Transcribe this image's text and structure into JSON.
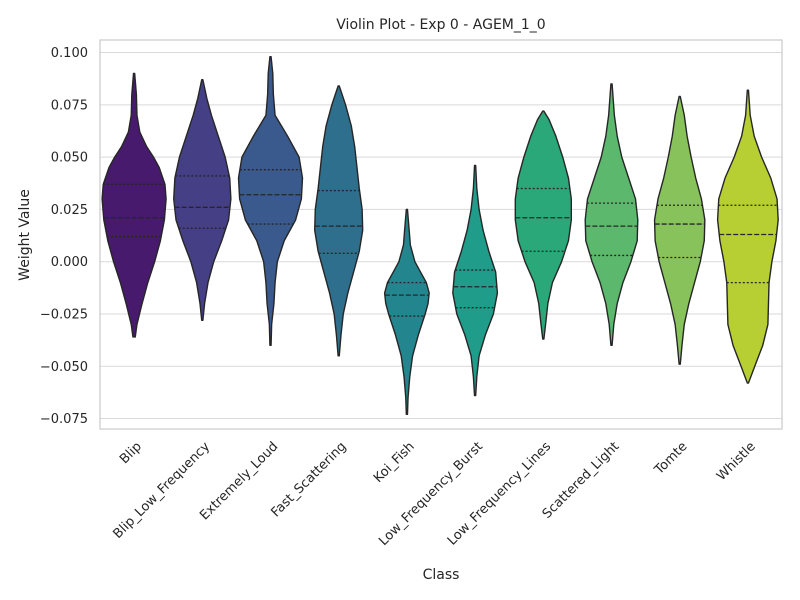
{
  "chart_data": {
    "type": "violin",
    "title": "Violin Plot - Exp 0 - AGEM_1_0",
    "xlabel": "Class",
    "ylabel": "Weight Value",
    "ylim": [
      -0.08,
      0.106
    ],
    "yticks": [
      0.1,
      0.075,
      0.05,
      0.025,
      0.0,
      -0.025,
      -0.05,
      -0.075
    ],
    "ytick_labels": [
      "0.100",
      "0.075",
      "0.050",
      "0.025",
      "0.000",
      "−0.025",
      "−0.050",
      "−0.075"
    ],
    "grid": true,
    "colors": [
      "#471a6e",
      "#453f86",
      "#3a5a8d",
      "#2e6f8e",
      "#23868e",
      "#1f9d8a",
      "#2aa879",
      "#5bb86c",
      "#87c25a",
      "#b8cf34"
    ],
    "categories": [
      "Blip",
      "Blip_Low_Frequency",
      "Extremely_Loud",
      "Fast_Scattering",
      "Koi_Fish",
      "Low_Frequency_Burst",
      "Low_Frequency_Lines",
      "Scattered_Light",
      "Tomte",
      "Whistle"
    ],
    "violins": [
      {
        "min": -0.036,
        "max": 0.09,
        "q1": 0.012,
        "median": 0.021,
        "q3": 0.037,
        "profile": [
          [
            -0.036,
            0.001
          ],
          [
            -0.03,
            0.0025
          ],
          [
            -0.02,
            0.007
          ],
          [
            -0.01,
            0.012
          ],
          [
            0.0,
            0.018
          ],
          [
            0.01,
            0.023
          ],
          [
            0.02,
            0.0265
          ],
          [
            0.03,
            0.028
          ],
          [
            0.037,
            0.027
          ],
          [
            0.045,
            0.022
          ],
          [
            0.05,
            0.017
          ],
          [
            0.055,
            0.011
          ],
          [
            0.062,
            0.005
          ],
          [
            0.07,
            0.0025
          ],
          [
            0.08,
            0.002
          ],
          [
            0.09,
            0.0005
          ]
        ]
      },
      {
        "min": -0.028,
        "max": 0.087,
        "q1": 0.016,
        "median": 0.026,
        "q3": 0.041,
        "profile": [
          [
            -0.028,
            0.0005
          ],
          [
            -0.02,
            0.002
          ],
          [
            -0.01,
            0.005
          ],
          [
            0.0,
            0.01
          ],
          [
            0.01,
            0.017
          ],
          [
            0.02,
            0.023
          ],
          [
            0.03,
            0.025
          ],
          [
            0.04,
            0.024
          ],
          [
            0.05,
            0.02
          ],
          [
            0.06,
            0.014
          ],
          [
            0.07,
            0.008
          ],
          [
            0.078,
            0.004
          ],
          [
            0.087,
            0.0005
          ]
        ]
      },
      {
        "min": -0.04,
        "max": 0.098,
        "q1": 0.018,
        "median": 0.032,
        "q3": 0.044,
        "profile": [
          [
            -0.04,
            0.0005
          ],
          [
            -0.03,
            0.001
          ],
          [
            -0.02,
            0.003
          ],
          [
            -0.01,
            0.004
          ],
          [
            0.0,
            0.006
          ],
          [
            0.01,
            0.012
          ],
          [
            0.02,
            0.022
          ],
          [
            0.03,
            0.027
          ],
          [
            0.04,
            0.028
          ],
          [
            0.05,
            0.025
          ],
          [
            0.06,
            0.015
          ],
          [
            0.07,
            0.004
          ],
          [
            0.08,
            0.0025
          ],
          [
            0.09,
            0.002
          ],
          [
            0.098,
            0.0005
          ]
        ]
      },
      {
        "min": -0.045,
        "max": 0.084,
        "q1": 0.004,
        "median": 0.017,
        "q3": 0.034,
        "profile": [
          [
            -0.045,
            0.0005
          ],
          [
            -0.035,
            0.002
          ],
          [
            -0.025,
            0.004
          ],
          [
            -0.015,
            0.008
          ],
          [
            -0.005,
            0.013
          ],
          [
            0.005,
            0.018
          ],
          [
            0.015,
            0.021
          ],
          [
            0.025,
            0.0205
          ],
          [
            0.035,
            0.018
          ],
          [
            0.045,
            0.016
          ],
          [
            0.055,
            0.014
          ],
          [
            0.065,
            0.011
          ],
          [
            0.075,
            0.006
          ],
          [
            0.084,
            0.0005
          ]
        ]
      },
      {
        "min": -0.073,
        "max": 0.025,
        "q1": -0.026,
        "median": -0.016,
        "q3": -0.01,
        "profile": [
          [
            -0.073,
            0.0005
          ],
          [
            -0.065,
            0.001
          ],
          [
            -0.055,
            0.0025
          ],
          [
            -0.045,
            0.005
          ],
          [
            -0.035,
            0.01
          ],
          [
            -0.025,
            0.016
          ],
          [
            -0.02,
            0.0185
          ],
          [
            -0.015,
            0.0195
          ],
          [
            -0.01,
            0.017
          ],
          [
            -0.005,
            0.012
          ],
          [
            0.0,
            0.007
          ],
          [
            0.008,
            0.003
          ],
          [
            0.015,
            0.002
          ],
          [
            0.025,
            0.0005
          ]
        ]
      },
      {
        "min": -0.064,
        "max": 0.046,
        "q1": -0.022,
        "median": -0.012,
        "q3": -0.004,
        "profile": [
          [
            -0.064,
            0.0005
          ],
          [
            -0.055,
            0.0015
          ],
          [
            -0.045,
            0.0035
          ],
          [
            -0.035,
            0.009
          ],
          [
            -0.025,
            0.016
          ],
          [
            -0.015,
            0.0195
          ],
          [
            -0.005,
            0.018
          ],
          [
            0.005,
            0.012
          ],
          [
            0.015,
            0.007
          ],
          [
            0.025,
            0.0035
          ],
          [
            0.035,
            0.0015
          ],
          [
            0.046,
            0.0005
          ]
        ]
      },
      {
        "min": -0.037,
        "max": 0.072,
        "q1": 0.005,
        "median": 0.021,
        "q3": 0.035,
        "profile": [
          [
            -0.037,
            0.0005
          ],
          [
            -0.03,
            0.002
          ],
          [
            -0.02,
            0.004
          ],
          [
            -0.01,
            0.008
          ],
          [
            0.0,
            0.016
          ],
          [
            0.01,
            0.022
          ],
          [
            0.02,
            0.0245
          ],
          [
            0.03,
            0.0245
          ],
          [
            0.04,
            0.022
          ],
          [
            0.05,
            0.017
          ],
          [
            0.06,
            0.011
          ],
          [
            0.068,
            0.005
          ],
          [
            0.072,
            0.0005
          ]
        ]
      },
      {
        "min": -0.04,
        "max": 0.085,
        "q1": 0.003,
        "median": 0.017,
        "q3": 0.028,
        "profile": [
          [
            -0.04,
            0.0005
          ],
          [
            -0.03,
            0.002
          ],
          [
            -0.02,
            0.005
          ],
          [
            -0.01,
            0.01
          ],
          [
            0.0,
            0.017
          ],
          [
            0.01,
            0.0225
          ],
          [
            0.02,
            0.023
          ],
          [
            0.03,
            0.021
          ],
          [
            0.04,
            0.015
          ],
          [
            0.05,
            0.009
          ],
          [
            0.06,
            0.005
          ],
          [
            0.07,
            0.0025
          ],
          [
            0.085,
            0.0005
          ]
        ]
      },
      {
        "min": -0.049,
        "max": 0.079,
        "q1": 0.002,
        "median": 0.018,
        "q3": 0.027,
        "profile": [
          [
            -0.049,
            0.0005
          ],
          [
            -0.04,
            0.002
          ],
          [
            -0.03,
            0.004
          ],
          [
            -0.02,
            0.008
          ],
          [
            -0.01,
            0.013
          ],
          [
            0.0,
            0.018
          ],
          [
            0.01,
            0.0215
          ],
          [
            0.02,
            0.022
          ],
          [
            0.03,
            0.019
          ],
          [
            0.04,
            0.014
          ],
          [
            0.05,
            0.01
          ],
          [
            0.06,
            0.0065
          ],
          [
            0.07,
            0.004
          ],
          [
            0.079,
            0.0005
          ]
        ]
      },
      {
        "min": -0.058,
        "max": 0.082,
        "q1": -0.01,
        "median": 0.013,
        "q3": 0.027,
        "profile": [
          [
            -0.058,
            0.0005
          ],
          [
            -0.05,
            0.006
          ],
          [
            -0.04,
            0.013
          ],
          [
            -0.03,
            0.0175
          ],
          [
            -0.02,
            0.018
          ],
          [
            -0.01,
            0.0185
          ],
          [
            0.0,
            0.021
          ],
          [
            0.01,
            0.0245
          ],
          [
            0.02,
            0.0265
          ],
          [
            0.03,
            0.0255
          ],
          [
            0.04,
            0.02
          ],
          [
            0.05,
            0.012
          ],
          [
            0.06,
            0.0055
          ],
          [
            0.07,
            0.002
          ],
          [
            0.082,
            0.0005
          ]
        ]
      }
    ]
  }
}
